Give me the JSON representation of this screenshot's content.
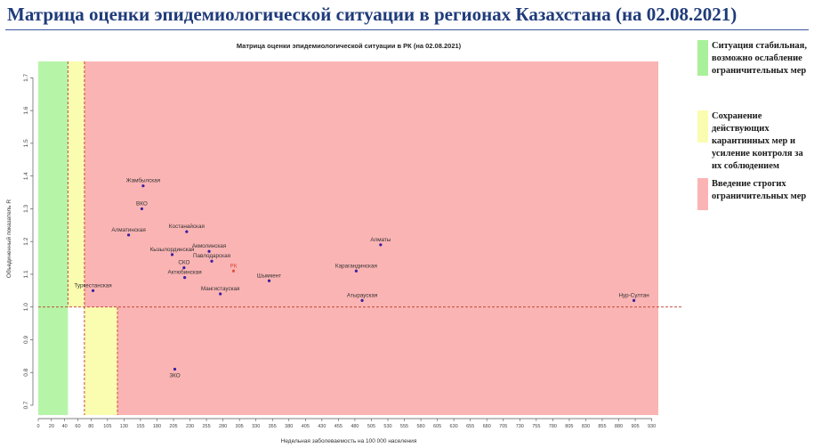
{
  "header": {
    "title": "Матрица оценки эпидемиологической ситуации в регионах Казахстана (на 02.08.2021)"
  },
  "chart_data": {
    "type": "scatter",
    "title": "Матрица оценки эпидемиологической ситуации в РК (на 02.08.2021)",
    "xlabel": "Недельная заболеваемость на 100 000 населения",
    "ylabel": "Объединенный показатель R",
    "xlim": [
      0,
      940
    ],
    "ylim": [
      0.67,
      1.75
    ],
    "x_ticks": [
      0,
      20,
      40,
      60,
      80,
      105,
      130,
      155,
      180,
      205,
      230,
      255,
      280,
      305,
      330,
      355,
      380,
      405,
      430,
      455,
      480,
      505,
      530,
      555,
      580,
      605,
      630,
      655,
      680,
      705,
      730,
      755,
      780,
      805,
      830,
      855,
      880,
      905,
      930
    ],
    "y_ticks": [
      0.7,
      0.8,
      0.9,
      1.0,
      1.1,
      1.2,
      1.3,
      1.4,
      1.5,
      1.6,
      1.7
    ],
    "zones": [
      {
        "label": "green",
        "x_from": 0,
        "x_to": 45,
        "y_from": 0.67,
        "y_to": 1.75,
        "color": "#b6f5a8"
      },
      {
        "label": "yellow",
        "x_from": 45,
        "x_to": 70,
        "y_from": 1.0,
        "y_to": 1.75,
        "color": "#fafcb0"
      },
      {
        "label": "yellow",
        "x_from": 70,
        "x_to": 120,
        "y_from": 0.67,
        "y_to": 1.0,
        "color": "#fafcb0"
      },
      {
        "label": "red",
        "x_from": 70,
        "x_to": 940,
        "y_from": 1.0,
        "y_to": 1.75,
        "color": "#fbb4b4"
      },
      {
        "label": "red",
        "x_from": 120,
        "x_to": 940,
        "y_from": 0.67,
        "y_to": 1.0,
        "color": "#fbb4b4"
      }
    ],
    "reference_lines": [
      {
        "axis": "y",
        "value": 1.0,
        "from": 0,
        "to": 940
      },
      {
        "axis": "x",
        "value": 45,
        "from": 1.0,
        "to": 1.75
      },
      {
        "axis": "x",
        "value": 70,
        "from": 0.67,
        "to": 1.75
      },
      {
        "axis": "x",
        "value": 120,
        "from": 0.67,
        "to": 1.0
      }
    ],
    "points": [
      {
        "name": "Жамбылская",
        "x": 159,
        "y": 1.37,
        "highlight": false
      },
      {
        "name": "ВКО",
        "x": 157,
        "y": 1.3,
        "highlight": false
      },
      {
        "name": "Алматинская",
        "x": 137,
        "y": 1.22,
        "highlight": false
      },
      {
        "name": "Костанайская",
        "x": 225,
        "y": 1.23,
        "highlight": false
      },
      {
        "name": "Кызылординская",
        "x": 203,
        "y": 1.16,
        "highlight": false
      },
      {
        "name": "СКО",
        "x": 221,
        "y": 1.12,
        "highlight": false
      },
      {
        "name": "Акмолинская",
        "x": 259,
        "y": 1.17,
        "highlight": false
      },
      {
        "name": "Павлодарская",
        "x": 263,
        "y": 1.14,
        "highlight": false
      },
      {
        "name": "РК",
        "x": 296,
        "y": 1.11,
        "highlight": true
      },
      {
        "name": "Актюбинская",
        "x": 222,
        "y": 1.09,
        "highlight": false
      },
      {
        "name": "Туркестанская",
        "x": 83,
        "y": 1.05,
        "highlight": false
      },
      {
        "name": "Мангистауская",
        "x": 276,
        "y": 1.04,
        "highlight": false
      },
      {
        "name": "Шымкент",
        "x": 350,
        "y": 1.08,
        "highlight": false
      },
      {
        "name": "Алматы",
        "x": 519,
        "y": 1.19,
        "highlight": false
      },
      {
        "name": "Карагандинская",
        "x": 482,
        "y": 1.11,
        "highlight": false
      },
      {
        "name": "Атырауская",
        "x": 491,
        "y": 1.02,
        "highlight": false
      },
      {
        "name": "Нур-Султан",
        "x": 903,
        "y": 1.02,
        "highlight": false
      },
      {
        "name": "ЗКО",
        "x": 207,
        "y": 0.81,
        "highlight": false
      }
    ]
  },
  "legend": [
    {
      "text": "Ситуация стабильная, возможно ослабление ограничительных мер",
      "color": "#a9f09a"
    },
    {
      "text": "Сохранение действующих карантинных мер и усиление контроля за их соблюдением",
      "color": "#fafcb0"
    },
    {
      "text": "Введение строгих ограничительных мер",
      "color": "#fbb4b4"
    }
  ]
}
